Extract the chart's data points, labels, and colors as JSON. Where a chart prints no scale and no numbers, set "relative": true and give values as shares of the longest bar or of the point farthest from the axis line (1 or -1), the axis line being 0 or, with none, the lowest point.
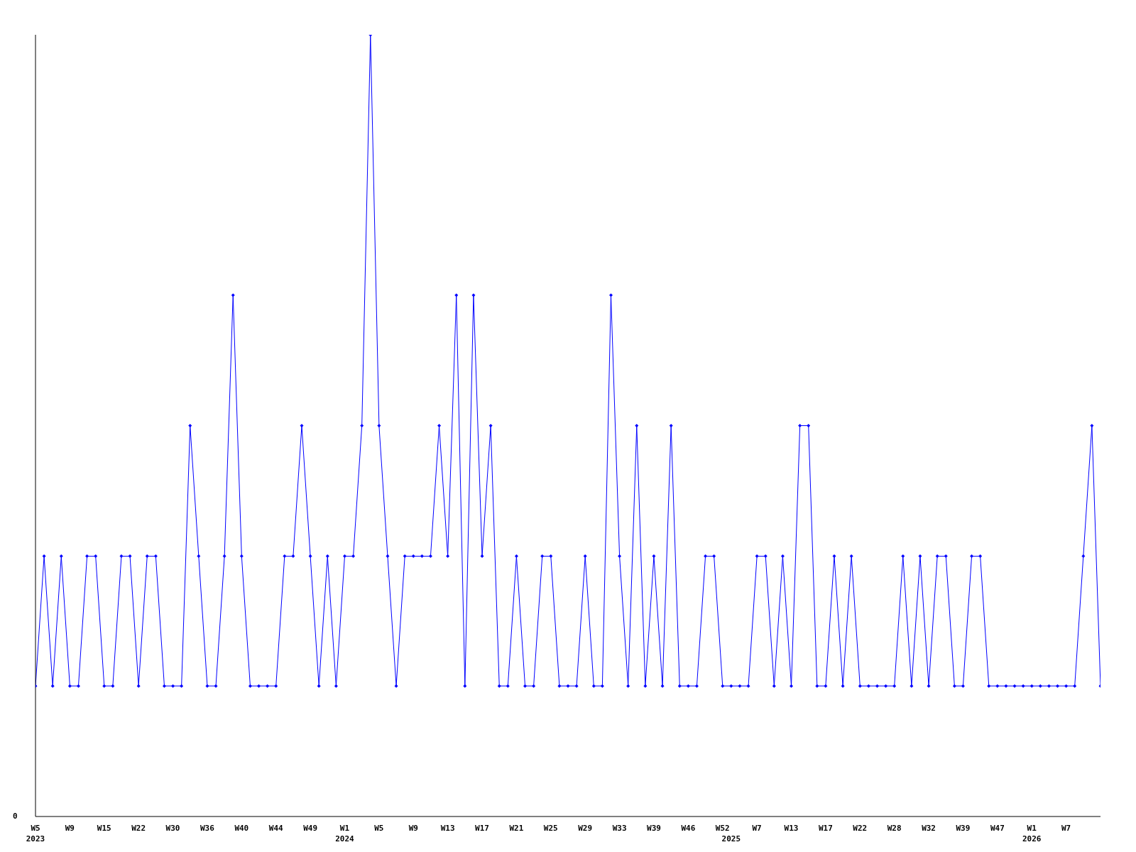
{
  "chart_data": {
    "type": "line",
    "relative": true,
    "categories": [
      "W5\n2023",
      null,
      null,
      null,
      "W9",
      null,
      null,
      null,
      "W15",
      null,
      null,
      null,
      "W22",
      null,
      null,
      null,
      "W30",
      null,
      null,
      null,
      "W36",
      null,
      null,
      null,
      "W40",
      null,
      null,
      null,
      "W44",
      null,
      null,
      null,
      "W49",
      null,
      null,
      null,
      "W1\n2024",
      null,
      null,
      null,
      "W5",
      null,
      null,
      null,
      "W9",
      null,
      null,
      null,
      "W13",
      null,
      null,
      null,
      "W17",
      null,
      null,
      null,
      "W21",
      null,
      null,
      null,
      "W25",
      null,
      null,
      null,
      "W29",
      null,
      null,
      null,
      "W33",
      null,
      null,
      null,
      "W39",
      null,
      null,
      null,
      "W46",
      null,
      null,
      null,
      "W52",
      "\n2025",
      null,
      null,
      "W7",
      null,
      null,
      null,
      "W13",
      null,
      null,
      null,
      "W17",
      null,
      null,
      null,
      "W22",
      null,
      null,
      null,
      "W28",
      null,
      null,
      null,
      "W32",
      null,
      null,
      null,
      "W39",
      null,
      null,
      null,
      "W47",
      null,
      null,
      null,
      "W1\n2026",
      null,
      null,
      null,
      "W7",
      null,
      null,
      null,
      null
    ],
    "series": [
      {
        "color": "#0000ff",
        "values": [
          0.167,
          0.333,
          0.167,
          0.333,
          0.167,
          0.167,
          0.333,
          0.333,
          0.167,
          0.167,
          0.333,
          0.333,
          0.167,
          0.333,
          0.333,
          0.167,
          0.167,
          0.167,
          0.5,
          0.333,
          0.167,
          0.167,
          0.333,
          0.667,
          0.333,
          0.167,
          0.167,
          0.167,
          0.167,
          0.333,
          0.333,
          0.5,
          0.333,
          0.167,
          0.333,
          0.167,
          0.333,
          0.333,
          0.5,
          1,
          0.5,
          0.333,
          0.167,
          0.333,
          0.333,
          0.333,
          0.333,
          0.5,
          0.333,
          0.667,
          0.167,
          0.667,
          0.333,
          0.5,
          0.167,
          0.167,
          0.333,
          0.167,
          0.167,
          0.333,
          0.333,
          0.167,
          0.167,
          0.167,
          0.333,
          0.167,
          0.167,
          0.667,
          0.333,
          0.167,
          0.5,
          0.167,
          0.333,
          0.167,
          0.5,
          0.167,
          0.167,
          0.167,
          0.333,
          0.333,
          0.167,
          0.167,
          0.167,
          0.167,
          0.333,
          0.333,
          0.167,
          0.333,
          0.167,
          0.5,
          0.5,
          0.167,
          0.167,
          0.333,
          0.167,
          0.333,
          0.167,
          0.167,
          0.167,
          0.167,
          0.167,
          0.333,
          0.167,
          0.333,
          0.167,
          0.333,
          0.333,
          0.167,
          0.167,
          0.333,
          0.333,
          0.167,
          0.167,
          0.167,
          0.167,
          0.167,
          0.167,
          0.167,
          0.167,
          0.167,
          0.167,
          0.167,
          0.333,
          0.5,
          0.167
        ]
      }
    ],
    "marker": "diamond",
    "line_style": "solid",
    "grid": false,
    "annotations": [
      "0"
    ]
  }
}
